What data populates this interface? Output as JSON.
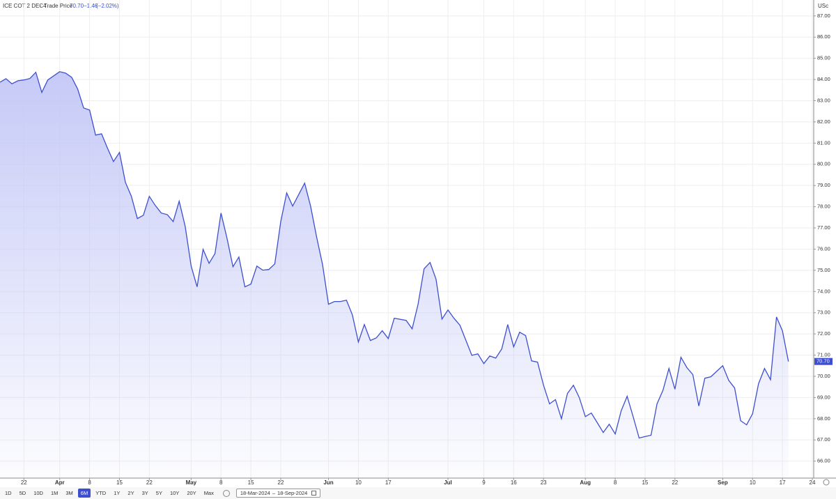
{
  "header": {
    "instrument": "ICE COT 2 DEC4",
    "separator": "·",
    "field": "Trade Price",
    "price": "70.70",
    "change": "−1.46",
    "change_pct": "(−2.02%)"
  },
  "chart_data": {
    "type": "area",
    "unit": "USc",
    "x": [
      "2024-03-18",
      "2024-03-19",
      "2024-03-20",
      "2024-03-21",
      "2024-03-22",
      "2024-03-25",
      "2024-03-26",
      "2024-03-27",
      "2024-03-28",
      "2024-04-01",
      "2024-04-02",
      "2024-04-03",
      "2024-04-04",
      "2024-04-05",
      "2024-04-08",
      "2024-04-09",
      "2024-04-10",
      "2024-04-11",
      "2024-04-12",
      "2024-04-15",
      "2024-04-16",
      "2024-04-17",
      "2024-04-18",
      "2024-04-19",
      "2024-04-22",
      "2024-04-23",
      "2024-04-24",
      "2024-04-25",
      "2024-04-26",
      "2024-04-29",
      "2024-04-30",
      "2024-05-01",
      "2024-05-02",
      "2024-05-03",
      "2024-05-06",
      "2024-05-07",
      "2024-05-08",
      "2024-05-09",
      "2024-05-10",
      "2024-05-13",
      "2024-05-14",
      "2024-05-15",
      "2024-05-16",
      "2024-05-17",
      "2024-05-20",
      "2024-05-21",
      "2024-05-22",
      "2024-05-23",
      "2024-05-24",
      "2024-05-28",
      "2024-05-29",
      "2024-05-30",
      "2024-05-31",
      "2024-06-03",
      "2024-06-04",
      "2024-06-05",
      "2024-06-06",
      "2024-06-07",
      "2024-06-10",
      "2024-06-11",
      "2024-06-12",
      "2024-06-13",
      "2024-06-14",
      "2024-06-17",
      "2024-06-18",
      "2024-06-20",
      "2024-06-21",
      "2024-06-24",
      "2024-06-25",
      "2024-06-26",
      "2024-06-27",
      "2024-06-28",
      "2024-07-01",
      "2024-07-02",
      "2024-07-03",
      "2024-07-05",
      "2024-07-08",
      "2024-07-09",
      "2024-07-10",
      "2024-07-11",
      "2024-07-12",
      "2024-07-15",
      "2024-07-16",
      "2024-07-17",
      "2024-07-18",
      "2024-07-19",
      "2024-07-22",
      "2024-07-23",
      "2024-07-24",
      "2024-07-25",
      "2024-07-26",
      "2024-07-29",
      "2024-07-30",
      "2024-07-31",
      "2024-08-01",
      "2024-08-02",
      "2024-08-05",
      "2024-08-06",
      "2024-08-07",
      "2024-08-08",
      "2024-08-09",
      "2024-08-12",
      "2024-08-13",
      "2024-08-14",
      "2024-08-15",
      "2024-08-16",
      "2024-08-19",
      "2024-08-20",
      "2024-08-21",
      "2024-08-22",
      "2024-08-23",
      "2024-08-26",
      "2024-08-27",
      "2024-08-28",
      "2024-08-29",
      "2024-08-30",
      "2024-09-03",
      "2024-09-04",
      "2024-09-05",
      "2024-09-06",
      "2024-09-09",
      "2024-09-10",
      "2024-09-11",
      "2024-09-12",
      "2024-09-13",
      "2024-09-16",
      "2024-09-17",
      "2024-09-18"
    ],
    "values": [
      83.87,
      84.04,
      83.8,
      83.94,
      83.98,
      84.05,
      84.34,
      83.39,
      83.98,
      84.37,
      84.3,
      84.1,
      83.55,
      82.66,
      82.56,
      81.38,
      81.44,
      80.76,
      80.13,
      80.56,
      79.15,
      78.49,
      77.44,
      77.6,
      78.49,
      78.06,
      77.7,
      77.63,
      77.3,
      78.26,
      77.08,
      75.2,
      74.22,
      75.99,
      75.33,
      75.79,
      77.7,
      76.52,
      75.17,
      75.63,
      74.22,
      74.35,
      75.2,
      75.01,
      75.04,
      75.3,
      77.3,
      78.65,
      78.03,
      79.11,
      78.03,
      76.58,
      75.27,
      73.4,
      73.53,
      73.53,
      73.59,
      72.9,
      71.62,
      72.44,
      71.69,
      71.81,
      72.15,
      71.78,
      72.74,
      72.64,
      72.24,
      73.4,
      75.07,
      75.37,
      74.58,
      72.7,
      73.13,
      72.74,
      72.41,
      70.99,
      71.06,
      70.6,
      70.96,
      70.86,
      71.29,
      72.44,
      71.39,
      72.08,
      71.92,
      70.73,
      70.67,
      69.58,
      68.7,
      68.9,
      68.0,
      69.19,
      69.58,
      68.99,
      68.1,
      68.27,
      67.81,
      67.35,
      67.74,
      67.28,
      68.37,
      69.06,
      68.1,
      67.09,
      67.16,
      67.22,
      68.7,
      69.35,
      70.37,
      69.39,
      70.9,
      70.41,
      70.08,
      68.6,
      69.91,
      69.98,
      70.5,
      69.81,
      69.45,
      67.91,
      67.71,
      68.24,
      69.65,
      70.37,
      69.84,
      72.8,
      72.15,
      70.7
    ],
    "color": "#3d4fcf",
    "fill_color": "#c3c7f6",
    "xlim": [
      "2024-03-18",
      "2024-09-24"
    ],
    "xticks": [
      {
        "value": "2024-03-22",
        "label": "22"
      },
      {
        "value": "2024-04-01",
        "label": "Apr"
      },
      {
        "value": "2024-04-08",
        "label": "8"
      },
      {
        "value": "2024-04-15",
        "label": "15"
      },
      {
        "value": "2024-04-22",
        "label": "22"
      },
      {
        "value": "2024-05-01",
        "label": "May"
      },
      {
        "value": "2024-05-08",
        "label": "8"
      },
      {
        "value": "2024-05-15",
        "label": "15"
      },
      {
        "value": "2024-05-22",
        "label": "22"
      },
      {
        "value": "2024-06-03",
        "label": "Jun"
      },
      {
        "value": "2024-06-10",
        "label": "10"
      },
      {
        "value": "2024-06-17",
        "label": "17"
      },
      {
        "value": "2024-07-01",
        "label": "Jul"
      },
      {
        "value": "2024-07-09",
        "label": "9"
      },
      {
        "value": "2024-07-16",
        "label": "16"
      },
      {
        "value": "2024-07-23",
        "label": "23"
      },
      {
        "value": "2024-08-01",
        "label": "Aug"
      },
      {
        "value": "2024-08-08",
        "label": "8"
      },
      {
        "value": "2024-08-15",
        "label": "15"
      },
      {
        "value": "2024-08-22",
        "label": "22"
      },
      {
        "value": "2024-09-03",
        "label": "Sep"
      },
      {
        "value": "2024-09-10",
        "label": "10"
      },
      {
        "value": "2024-09-17",
        "label": "17"
      },
      {
        "value": "2024-09-24",
        "label": "24"
      }
    ],
    "ylim": [
      65.2,
      87.75
    ],
    "yticks": [
      {
        "value": 66,
        "label": "66.00"
      },
      {
        "value": 67,
        "label": "67.00"
      },
      {
        "value": 68,
        "label": "68.00"
      },
      {
        "value": 69,
        "label": "69.00"
      },
      {
        "value": 70,
        "label": "70.00"
      },
      {
        "value": 71,
        "label": "71.00"
      },
      {
        "value": 72,
        "label": "72.00"
      },
      {
        "value": 73,
        "label": "73.00"
      },
      {
        "value": 74,
        "label": "74.00"
      },
      {
        "value": 75,
        "label": "75.00"
      },
      {
        "value": 76,
        "label": "76.00"
      },
      {
        "value": 77,
        "label": "77.00"
      },
      {
        "value": 78,
        "label": "78.00"
      },
      {
        "value": 79,
        "label": "79.00"
      },
      {
        "value": 80,
        "label": "80.00"
      },
      {
        "value": 81,
        "label": "81.00"
      },
      {
        "value": 82,
        "label": "82.00"
      },
      {
        "value": 83,
        "label": "83.00"
      },
      {
        "value": 84,
        "label": "84.00"
      },
      {
        "value": 85,
        "label": "85.00"
      },
      {
        "value": 86,
        "label": "86.00"
      },
      {
        "value": 87,
        "label": "87.00"
      }
    ],
    "grid": true
  },
  "toolbar": {
    "ranges": [
      "1D",
      "5D",
      "10D",
      "1M",
      "3M",
      "6M",
      "YTD",
      "1Y",
      "2Y",
      "3Y",
      "5Y",
      "10Y",
      "20Y",
      "Max"
    ],
    "active_range": "6M",
    "date_from": "18-Mar-2024",
    "date_sep": "–",
    "date_to": "18-Sep-2024"
  }
}
